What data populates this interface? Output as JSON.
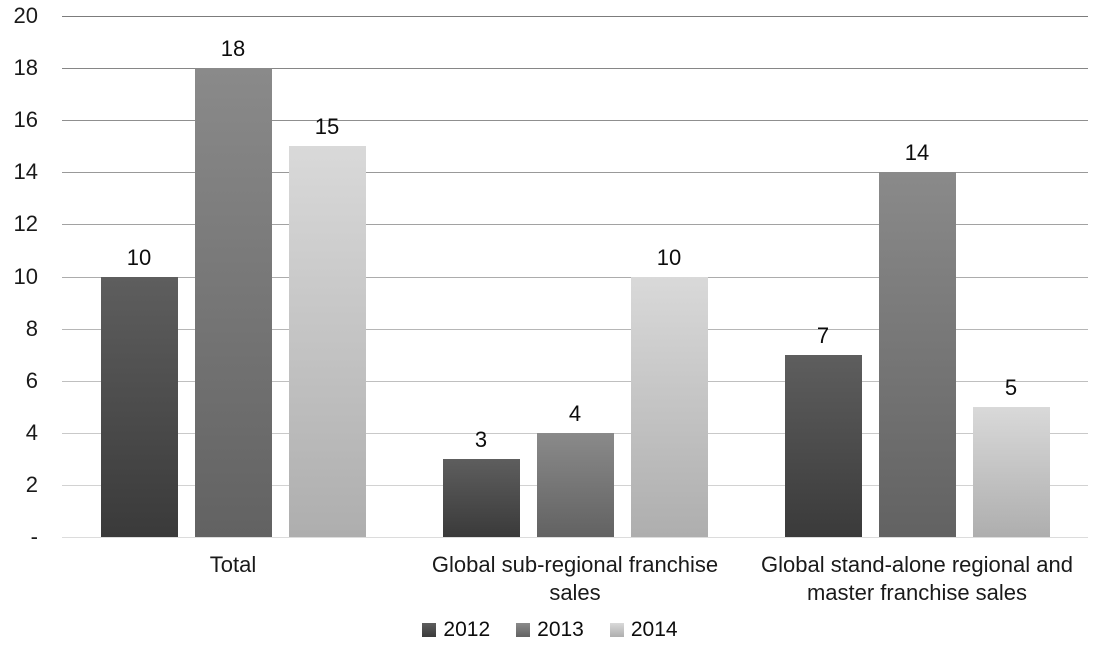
{
  "chart_data": {
    "type": "bar",
    "title": "",
    "xlabel": "",
    "ylabel": "",
    "categories": [
      "Total",
      "Global sub-regional franchise sales",
      "Global stand-alone regional and\nmaster franchise sales"
    ],
    "series": [
      {
        "name": "2012",
        "values": [
          10,
          3,
          7
        ],
        "color_top": "#5e5e5e",
        "color_bottom": "#3a3a3a"
      },
      {
        "name": "2013",
        "values": [
          18,
          4,
          14
        ],
        "color_top": "#8a8a8a",
        "color_bottom": "#626262"
      },
      {
        "name": "2014",
        "values": [
          15,
          10,
          5
        ],
        "color_top": "#d9d9d9",
        "color_bottom": "#aeaeae"
      }
    ],
    "ylim": [
      0,
      20
    ],
    "ytick_step": 2,
    "ytick_labels": [
      "-",
      "2",
      "4",
      "6",
      "8",
      "10",
      "12",
      "14",
      "16",
      "18",
      "20"
    ],
    "grid": true,
    "data_labels": true,
    "legend_position": "bottom",
    "background_color": "#ffffff",
    "text_color": "#111111"
  }
}
